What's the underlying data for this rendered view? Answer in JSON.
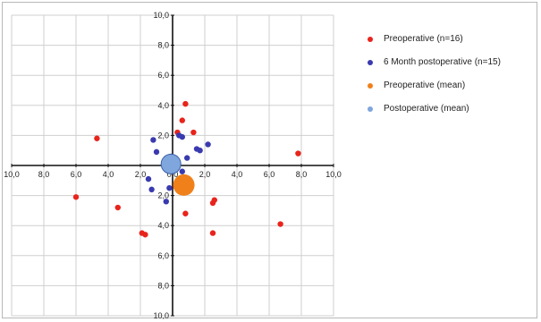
{
  "chart_data": {
    "type": "scatter",
    "title": "",
    "xlabel": "",
    "ylabel": "",
    "xlim": [
      -10,
      10
    ],
    "ylim": [
      -10,
      10
    ],
    "grid": true,
    "legend_position": "right",
    "x_ticks": [
      {
        "value": -10,
        "label": "10,0"
      },
      {
        "value": -8,
        "label": "8,0"
      },
      {
        "value": -6,
        "label": "6,0"
      },
      {
        "value": -4,
        "label": "4,0"
      },
      {
        "value": -2,
        "label": "2,0"
      },
      {
        "value": 0,
        "label": "0,0"
      },
      {
        "value": 2,
        "label": "2,0"
      },
      {
        "value": 4,
        "label": "4,0"
      },
      {
        "value": 6,
        "label": "6,0"
      },
      {
        "value": 8,
        "label": "8,0"
      },
      {
        "value": 10,
        "label": "10,0"
      }
    ],
    "y_ticks": [
      {
        "value": 10,
        "label": "10,0"
      },
      {
        "value": 8,
        "label": "8,0"
      },
      {
        "value": 6,
        "label": "6,0"
      },
      {
        "value": 4,
        "label": "4,0"
      },
      {
        "value": 2,
        "label": "2,0"
      },
      {
        "value": -2,
        "label": "2,0"
      },
      {
        "value": -4,
        "label": "4,0"
      },
      {
        "value": -6,
        "label": "6,0"
      },
      {
        "value": -8,
        "label": "8,0"
      },
      {
        "value": -10,
        "label": "10,0"
      }
    ],
    "series": [
      {
        "name": "Preoperative (n=16)",
        "color": "#e8241c",
        "x": [
          -4.7,
          -6.0,
          -3.4,
          -1.9,
          0.8,
          0.3,
          1.3,
          0.8,
          2.5,
          2.6,
          2.5,
          7.8,
          6.7,
          0.6,
          0.2,
          -1.7
        ],
        "y": [
          1.8,
          -2.1,
          -2.8,
          -4.5,
          4.1,
          2.2,
          2.2,
          -3.2,
          -2.5,
          -2.3,
          -4.5,
          0.8,
          -3.9,
          3.0,
          -1.4,
          -4.6
        ]
      },
      {
        "name": "6 Month postoperative (n=15)",
        "color": "#3a3ab0",
        "x": [
          -1.2,
          -1.0,
          -1.5,
          0.4,
          0.6,
          1.5,
          2.2,
          0.3,
          -0.2,
          -0.4,
          -1.3,
          0.6,
          0.9,
          -0.1,
          1.7
        ],
        "y": [
          1.7,
          0.9,
          -0.9,
          2.0,
          1.9,
          1.1,
          1.4,
          -1.3,
          -1.5,
          -2.4,
          -1.6,
          -0.4,
          0.5,
          0.6,
          1.0
        ]
      },
      {
        "name": "Preoperative (mean)",
        "color": "#f0801a",
        "x": [
          0.7
        ],
        "y": [
          -1.3
        ]
      },
      {
        "name": "Postoperative (mean)",
        "color": "#7fa6dd",
        "x": [
          -0.1
        ],
        "y": [
          0.1
        ]
      }
    ]
  }
}
